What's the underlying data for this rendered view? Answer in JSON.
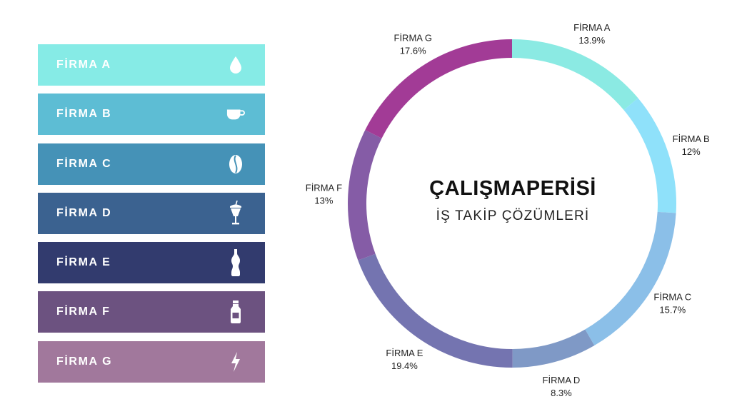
{
  "chart_data": {
    "type": "pie",
    "variant": "donut",
    "center_title": "ÇALIŞMAPERİSİ",
    "center_subtitle": "İŞ TAKİP ÇÖZÜMLERİ",
    "slices": [
      {
        "name": "FİRMA A",
        "value": 13.9,
        "label": "13.9%",
        "color": "#8beae3",
        "legend_color": "#86ebe6",
        "icon": "water-drop-icon"
      },
      {
        "name": "FİRMA B",
        "value": 12,
        "label": "12%",
        "color": "#8fe1fa",
        "legend_color": "#5dbdd4",
        "icon": "coffee-cup-icon"
      },
      {
        "name": "FİRMA C",
        "value": 15.7,
        "label": "15.7%",
        "color": "#8bbfe8",
        "legend_color": "#4592b7",
        "icon": "coffee-bean-icon"
      },
      {
        "name": "FİRMA D",
        "value": 8.3,
        "label": "8.3%",
        "color": "#7f99c6",
        "legend_color": "#3b6290",
        "icon": "milkshake-icon"
      },
      {
        "name": "FİRMA E",
        "value": 19.4,
        "label": "19.4%",
        "color": "#7474b0",
        "legend_color": "#323b6e",
        "icon": "soda-bottle-icon"
      },
      {
        "name": "FİRMA F",
        "value": 13,
        "label": "13%",
        "color": "#855ca6",
        "legend_color": "#6c5280",
        "icon": "milk-bottle-icon"
      },
      {
        "name": "FİRMA G",
        "value": 17.6,
        "label": "17.6%",
        "color": "#a23b96",
        "legend_color": "#a1789c",
        "icon": "lightning-icon"
      }
    ],
    "legend_placement": "left"
  }
}
